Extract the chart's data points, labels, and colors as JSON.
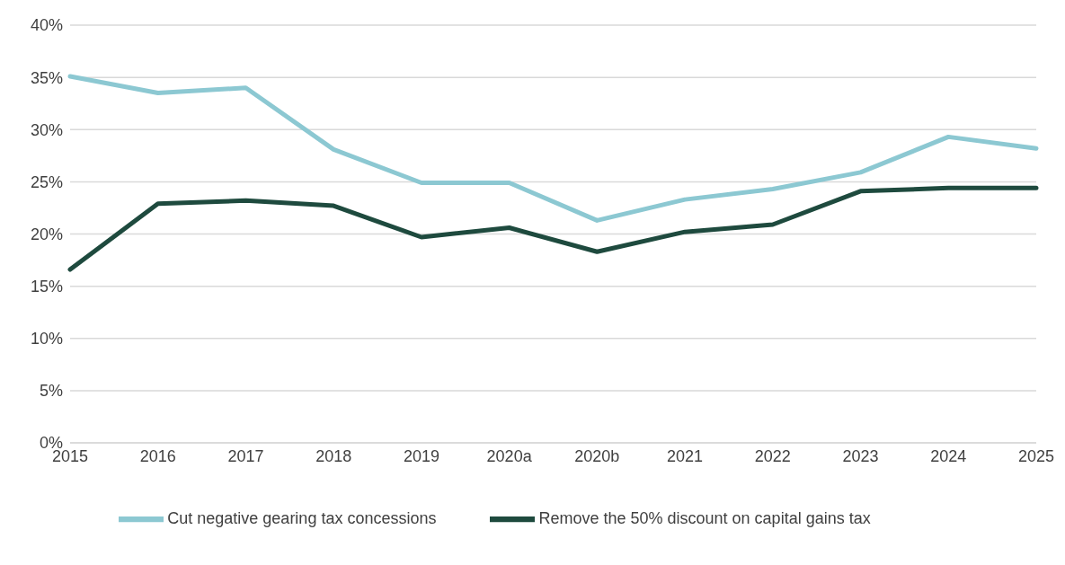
{
  "chart_data": {
    "type": "line",
    "categories": [
      "2015",
      "2016",
      "2017",
      "2018",
      "2019",
      "2020a",
      "2020b",
      "2021",
      "2022",
      "2023",
      "2024",
      "2025"
    ],
    "series": [
      {
        "name": "Cut negative gearing tax concessions",
        "color": "#8cc8d2",
        "values": [
          35.1,
          33.5,
          34.0,
          28.1,
          24.9,
          24.9,
          21.3,
          23.3,
          24.3,
          25.9,
          29.3,
          28.2
        ]
      },
      {
        "name": "Remove the 50% discount on capital gains tax",
        "color": "#1e4a3e",
        "values": [
          16.6,
          22.9,
          23.2,
          22.7,
          19.7,
          20.6,
          18.3,
          20.2,
          20.9,
          24.1,
          24.4,
          24.4
        ]
      }
    ],
    "ylim": [
      0,
      40
    ],
    "yticks": [
      {
        "value": 0,
        "label": "0%"
      },
      {
        "value": 5,
        "label": "5%"
      },
      {
        "value": 10,
        "label": "10%"
      },
      {
        "value": 15,
        "label": "15%"
      },
      {
        "value": 20,
        "label": "20%"
      },
      {
        "value": 25,
        "label": "25%"
      },
      {
        "value": 30,
        "label": "30%"
      },
      {
        "value": 35,
        "label": "35%"
      },
      {
        "value": 40,
        "label": "40%"
      }
    ],
    "grid": "y",
    "legend": "bottom",
    "marker": "none",
    "line_style": "solid"
  }
}
